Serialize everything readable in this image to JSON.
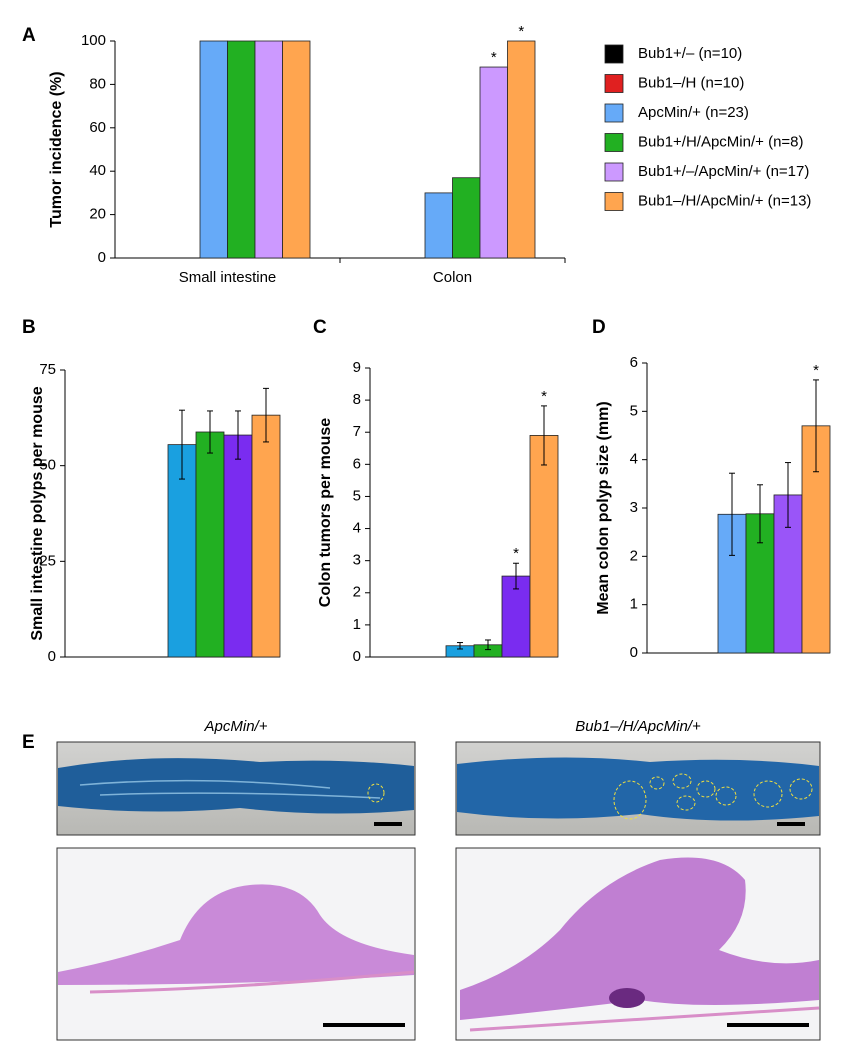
{
  "chart_data": [
    {
      "type": "bar",
      "panel": "A",
      "ylabel": "Tumor incidence (%)",
      "categories": [
        "Small intestine",
        "Colon"
      ],
      "ylim": [
        0,
        100
      ],
      "yticks": [
        0,
        20,
        40,
        60,
        80,
        100
      ],
      "series": [
        {
          "name": "Bub1+/– (n=10)",
          "color": "#000000",
          "values": [
            0,
            0
          ]
        },
        {
          "name": "Bub1–/H (n=10)",
          "color": "#e02020",
          "values": [
            0,
            0
          ]
        },
        {
          "name": "ApcMin/+ (n=23)",
          "color": "#66aaf8",
          "values": [
            100,
            30
          ]
        },
        {
          "name": "Bub1+/H/ApcMin/+ (n=8)",
          "color": "#22b022",
          "values": [
            100,
            37
          ]
        },
        {
          "name": "Bub1+/–/ApcMin/+ (n=17)",
          "color": "#cc99ff",
          "values": [
            100,
            88
          ],
          "significance": [
            null,
            "*"
          ]
        },
        {
          "name": "Bub1–/H/ApcMin/+ (n=13)",
          "color": "#ffa54f",
          "values": [
            100,
            100
          ],
          "significance": [
            null,
            "*"
          ]
        }
      ],
      "legend": "right"
    },
    {
      "type": "bar",
      "panel": "B",
      "ylabel": "Small intestine polyps per mouse",
      "categories": [
        null
      ],
      "ylim": [
        0,
        75
      ],
      "yticks": [
        0,
        25,
        50,
        75
      ],
      "series": [
        {
          "color": "#1aa0e0",
          "values": [
            55.5
          ],
          "errors": [
            9
          ]
        },
        {
          "color": "#22b022",
          "values": [
            58.8
          ],
          "errors": [
            5.5
          ]
        },
        {
          "color": "#7a2cf0",
          "values": [
            58
          ],
          "errors": [
            6.3
          ]
        },
        {
          "color": "#ffa54f",
          "values": [
            63.2
          ],
          "errors": [
            7
          ]
        }
      ]
    },
    {
      "type": "bar",
      "panel": "C",
      "ylabel": "Colon tumors per mouse",
      "categories": [
        null
      ],
      "ylim": [
        0,
        9
      ],
      "yticks": [
        0,
        1,
        2,
        3,
        4,
        5,
        6,
        7,
        8,
        9
      ],
      "series": [
        {
          "color": "#1aa0e0",
          "values": [
            0.35
          ],
          "errors": [
            0.1
          ]
        },
        {
          "color": "#22b022",
          "values": [
            0.38
          ],
          "errors": [
            0.15
          ]
        },
        {
          "color": "#7a2cf0",
          "values": [
            2.52
          ],
          "errors": [
            0.4
          ],
          "significance": [
            "*"
          ]
        },
        {
          "color": "#ffa54f",
          "values": [
            6.9
          ],
          "errors": [
            0.92
          ],
          "significance": [
            "*"
          ]
        }
      ]
    },
    {
      "type": "bar",
      "panel": "D",
      "ylabel": "Mean colon polyp size (mm)",
      "categories": [
        null
      ],
      "ylim": [
        0,
        6
      ],
      "yticks": [
        0,
        1,
        2,
        3,
        4,
        5,
        6
      ],
      "series": [
        {
          "color": "#66aaf8",
          "values": [
            2.87
          ],
          "errors": [
            0.85
          ]
        },
        {
          "color": "#22b022",
          "values": [
            2.88
          ],
          "errors": [
            0.6
          ]
        },
        {
          "color": "#9a55f8",
          "values": [
            3.27
          ],
          "errors": [
            0.67
          ]
        },
        {
          "color": "#ffa54f",
          "values": [
            4.7
          ],
          "errors": [
            0.95
          ],
          "significance": [
            "*"
          ]
        }
      ]
    }
  ],
  "figure_e": {
    "panel": "E",
    "images": [
      {
        "label": "ApcMin/+"
      },
      {
        "label": "Bub1–/H/ApcMin/+"
      }
    ]
  }
}
